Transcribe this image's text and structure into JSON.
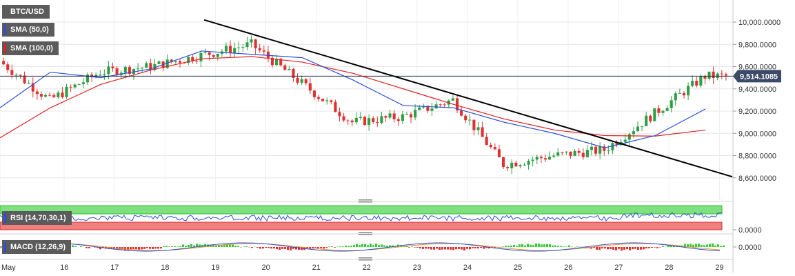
{
  "legend": {
    "symbol": "BTC/USD",
    "sma50": "SMA (50,0)",
    "sma100": "SMA (100,0)",
    "rsi": "RSI (14,70,30,1)",
    "macd": "MACD (12,26,9)"
  },
  "colors": {
    "bull": "#2f9e44",
    "bear": "#e03131",
    "sma50": "#2b4fd6",
    "sma100": "#e02020",
    "trendline": "#000000",
    "rsi_over": "#7fe07f",
    "rsi_under": "#f08080",
    "label_bg": "#5b5b5b",
    "price_tag": "#3b4a66"
  },
  "chart_data": {
    "type": "candlestick",
    "title": "",
    "x_ticks": [
      "May",
      "16",
      "17",
      "18",
      "19",
      "20",
      "21",
      "22",
      "23",
      "24",
      "25",
      "26",
      "27",
      "28",
      "29"
    ],
    "y_ticks": [
      "10,000.0000",
      "9,800.0000",
      "9,600.0000",
      "9,400.0000",
      "9,200.0000",
      "9,000.0000",
      "8,800.0000",
      "8,600.0000"
    ],
    "ylim": [
      8500,
      10150
    ],
    "current_price": "9,514.1085",
    "current_value": 9514.1085,
    "series": [
      {
        "name": "BTC/USD",
        "x": [
          "May",
          "16",
          "17",
          "18",
          "19",
          "20",
          "21",
          "22",
          "23",
          "24",
          "25",
          "26",
          "27",
          "28",
          "29"
        ],
        "close": [
          9650,
          9300,
          9550,
          9600,
          9700,
          9800,
          9450,
          9100,
          9150,
          9300,
          8720,
          8800,
          8850,
          9180,
          9514
        ]
      },
      {
        "name": "SMA (50,0)",
        "x": [
          "May",
          "16",
          "17",
          "18",
          "19",
          "20",
          "21",
          "22",
          "23",
          "24",
          "25",
          "26",
          "27",
          "28",
          "29"
        ],
        "values": [
          9230,
          9550,
          9500,
          9580,
          9740,
          9710,
          9680,
          9480,
          9250,
          9230,
          9100,
          9000,
          8870,
          8980,
          9220
        ]
      },
      {
        "name": "SMA (100,0)",
        "x": [
          "May",
          "16",
          "17",
          "18",
          "19",
          "20",
          "21",
          "22",
          "23",
          "24",
          "25",
          "26",
          "27",
          "28",
          "29"
        ],
        "values": [
          8960,
          9230,
          9440,
          9570,
          9670,
          9690,
          9640,
          9540,
          9400,
          9260,
          9130,
          9030,
          8980,
          8975,
          9030
        ]
      }
    ],
    "trendline": {
      "from": {
        "x": "18.8",
        "value": 10020
      },
      "to": {
        "x": "29.3",
        "value": 8610
      }
    },
    "rsi": {
      "name": "RSI (14,70,30,1)",
      "levels": [
        70,
        30
      ]
    },
    "macd": {
      "name": "MACD (12,26,9)",
      "zero_label": "0.0000"
    },
    "rsi_axis_label": "0.0000"
  }
}
